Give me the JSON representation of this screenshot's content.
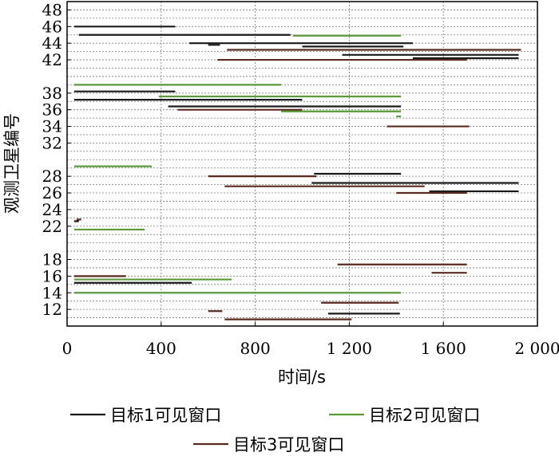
{
  "chart_data": {
    "type": "gantt",
    "xlabel": "时间/s",
    "ylabel": "观测卫星编号",
    "xlim": [
      0,
      2000
    ],
    "ylim": [
      10,
      49
    ],
    "x_ticks": [
      {
        "value": 0,
        "label": "0"
      },
      {
        "value": 400,
        "label": "400"
      },
      {
        "value": 800,
        "label": "800"
      },
      {
        "value": 1200,
        "label": "1 200"
      },
      {
        "value": 1600,
        "label": "1 600"
      },
      {
        "value": 2000,
        "label": "2 000"
      }
    ],
    "y_ticks": [
      12,
      14,
      16,
      18,
      22,
      24,
      26,
      28,
      32,
      34,
      36,
      38,
      42,
      44,
      46,
      48
    ],
    "grid": true,
    "legend_position": "bottom",
    "series": [
      {
        "name": "目标1可见窗口",
        "color": "#1a1a1a",
        "windows": [
          {
            "sat": 46,
            "start": 30,
            "end": 460
          },
          {
            "sat": 45,
            "start": 50,
            "end": 950
          },
          {
            "sat": 44,
            "start": 520,
            "end": 1470
          },
          {
            "sat": 43.8,
            "start": 600,
            "end": 650
          },
          {
            "sat": 43.6,
            "start": 1000,
            "end": 1430
          },
          {
            "sat": 42.6,
            "start": 1170,
            "end": 1920
          },
          {
            "sat": 42.2,
            "start": 1470,
            "end": 1920
          },
          {
            "sat": 38.2,
            "start": 30,
            "end": 460
          },
          {
            "sat": 37.2,
            "start": 30,
            "end": 1000
          },
          {
            "sat": 36.4,
            "start": 430,
            "end": 1420
          },
          {
            "sat": 28.3,
            "start": 1050,
            "end": 1420
          },
          {
            "sat": 27.2,
            "start": 1040,
            "end": 1920
          },
          {
            "sat": 26.2,
            "start": 1540,
            "end": 1920
          },
          {
            "sat": 22.6,
            "start": 30,
            "end": 50
          },
          {
            "sat": 15.2,
            "start": 30,
            "end": 530
          },
          {
            "sat": 11.5,
            "start": 1110,
            "end": 1415
          }
        ]
      },
      {
        "name": "目标2可见窗口",
        "color": "#5a9a3a",
        "windows": [
          {
            "sat": 44.9,
            "start": 960,
            "end": 1420
          },
          {
            "sat": 39.0,
            "start": 30,
            "end": 910
          },
          {
            "sat": 37.6,
            "start": 390,
            "end": 1420
          },
          {
            "sat": 35.8,
            "start": 910,
            "end": 1420
          },
          {
            "sat": 35.2,
            "start": 1400,
            "end": 1420
          },
          {
            "sat": 29.2,
            "start": 30,
            "end": 360
          },
          {
            "sat": 21.6,
            "start": 30,
            "end": 330
          },
          {
            "sat": 15.6,
            "start": 30,
            "end": 700
          },
          {
            "sat": 14.0,
            "start": 30,
            "end": 1420
          }
        ]
      },
      {
        "name": "目标3可见窗口",
        "color": "#5a2a1e",
        "windows": [
          {
            "sat": 43.2,
            "start": 680,
            "end": 1930
          },
          {
            "sat": 42.0,
            "start": 640,
            "end": 1700
          },
          {
            "sat": 36.0,
            "start": 470,
            "end": 1000
          },
          {
            "sat": 34.0,
            "start": 1360,
            "end": 1710
          },
          {
            "sat": 28.0,
            "start": 600,
            "end": 1060
          },
          {
            "sat": 26.8,
            "start": 670,
            "end": 1520
          },
          {
            "sat": 26.0,
            "start": 1400,
            "end": 1700
          },
          {
            "sat": 22.8,
            "start": 40,
            "end": 60
          },
          {
            "sat": 17.4,
            "start": 1150,
            "end": 1700
          },
          {
            "sat": 16.4,
            "start": 1550,
            "end": 1700
          },
          {
            "sat": 16.0,
            "start": 30,
            "end": 250
          },
          {
            "sat": 12.8,
            "start": 1080,
            "end": 1410
          },
          {
            "sat": 11.8,
            "start": 600,
            "end": 660
          },
          {
            "sat": 10.8,
            "start": 670,
            "end": 1210
          }
        ]
      }
    ]
  }
}
